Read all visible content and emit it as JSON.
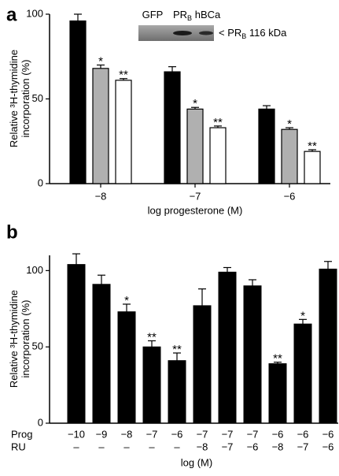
{
  "chart_data": [
    {
      "type": "grouped-bar",
      "panel": "a",
      "y_label": "Relative ³H-thymidine incorporation (%)",
      "x_label": "log progesterone (M)",
      "categories": [
        "−8",
        "−7",
        "−6"
      ],
      "series": [
        {
          "color": "#000000",
          "values": [
            96,
            66,
            44
          ],
          "errors": [
            4,
            3,
            2
          ],
          "stars": [
            null,
            null,
            null
          ]
        },
        {
          "color": "#b0b0b0",
          "values": [
            68,
            44,
            32
          ],
          "errors": [
            2,
            1,
            1
          ],
          "stars": [
            "*",
            "*",
            "*"
          ]
        },
        {
          "color": "#ffffff",
          "values": [
            61,
            33,
            19
          ],
          "errors": [
            1,
            1,
            1
          ],
          "stars": [
            "**",
            "**",
            "**"
          ]
        }
      ],
      "ylim": [
        0,
        100
      ],
      "yticks": [
        0,
        50,
        100
      ],
      "blot": {
        "lanes": [
          {
            "text": "GFP"
          },
          {
            "text": "PR",
            "sub": "B"
          },
          {
            "text": "hBCa"
          }
        ],
        "band_label": {
          "prefix": "< PR",
          "sub": "B",
          "suffix": " 116 kDa"
        }
      }
    },
    {
      "type": "bar",
      "panel": "b",
      "y_label": "Relative ³H-thymidine incorporation (%)",
      "x_label": "log (M)",
      "row_labels": [
        "Prog",
        "RU"
      ],
      "prog": [
        "−10",
        "−9",
        "−8",
        "−7",
        "−6",
        "−7",
        "−7",
        "−7",
        "−6",
        "−6",
        "−6"
      ],
      "ru": [
        "–",
        "–",
        "–",
        "–",
        "–",
        "−8",
        "−7",
        "−6",
        "−8",
        "−7",
        "−6"
      ],
      "color": "#000000",
      "values": [
        104,
        91,
        73,
        50,
        41,
        77,
        99,
        90,
        39,
        65,
        101
      ],
      "errors": [
        7,
        6,
        5,
        4,
        5,
        11,
        3,
        4,
        1,
        3,
        5
      ],
      "stars": [
        null,
        null,
        "*",
        "**",
        "**",
        null,
        null,
        null,
        "**",
        "*",
        null
      ],
      "ylim": [
        0,
        110
      ],
      "yticks": [
        0,
        50,
        100
      ]
    }
  ]
}
